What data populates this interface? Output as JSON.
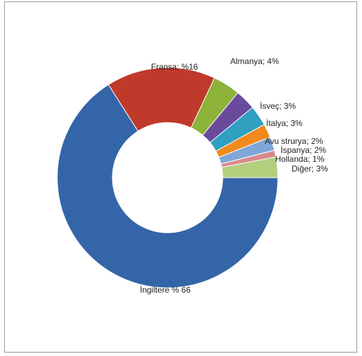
{
  "chart_data": {
    "type": "pie",
    "variant": "donut",
    "slices": [
      {
        "name": "İngiltere",
        "value": 66,
        "label": "İngiltere % 66",
        "color": "#3465a8"
      },
      {
        "name": "Fransa",
        "value": 16,
        "label": "Fransa; %16",
        "color": "#c0392b"
      },
      {
        "name": "Almanya",
        "value": 4,
        "label": "Almanya; 4%",
        "color": "#8db33b"
      },
      {
        "name": "İsveç",
        "value": 3,
        "label": "İsveç; 3%",
        "color": "#6a4a9c"
      },
      {
        "name": "İtalya",
        "value": 3,
        "label": "İtalya; 3%",
        "color": "#2fa0c0"
      },
      {
        "name": "Avustrurya",
        "value": 2,
        "label": "Avu strurya; 2%",
        "color": "#f08a1c"
      },
      {
        "name": "İspanya",
        "value": 2,
        "label": "İspanya; 2%",
        "color": "#7ea6d8"
      },
      {
        "name": "Hollanda",
        "value": 1,
        "label": "Hollanda; 1%",
        "color": "#d98a8a"
      },
      {
        "name": "Diğer",
        "value": 3,
        "label": "Diğer; 3%",
        "color": "#b3cf7e"
      }
    ],
    "legend": "none",
    "title": ""
  }
}
